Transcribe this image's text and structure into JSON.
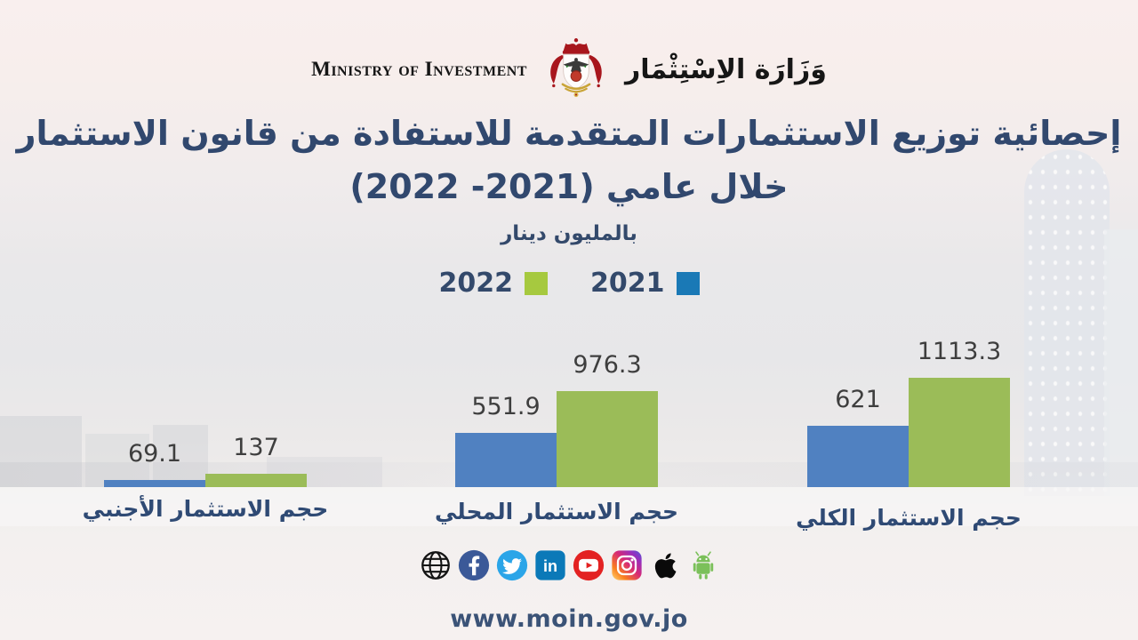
{
  "header": {
    "ministry_en": "Ministry of Investment",
    "ministry_ar": "وَزَارَة الاِسْتِثْمَار",
    "logo_icon": "jordan-coat-of-arms"
  },
  "title": {
    "line1": "إحصائية توزيع الاستثمارات المتقدمة للاستفادة من قانون الاستثمار",
    "line2": "خلال عامي (2021- 2022)"
  },
  "subtitle": "بالمليون دينار",
  "legend": {
    "items": [
      {
        "label": "2022",
        "color": "#a6c93f"
      },
      {
        "label": "2021",
        "color": "#1a79b6"
      }
    ]
  },
  "chart_data": {
    "type": "bar",
    "title": "إحصائية توزيع الاستثمارات المتقدمة للاستفادة من قانون الاستثمار خلال عامي (2021- 2022)",
    "unit": "بالمليون دينار",
    "categories": [
      "حجم الاستثمار الأجنبي",
      "حجم الاستثمار المحلي",
      "حجم الاستثمار الكلي"
    ],
    "series": [
      {
        "name": "2021",
        "color": "#5081c1",
        "values": [
          69.1,
          551.9,
          621
        ]
      },
      {
        "name": "2022",
        "color": "#9bbc58",
        "values": [
          137,
          976.3,
          1113.3
        ]
      }
    ],
    "value_labels": [
      [
        "69.1",
        "137"
      ],
      [
        "551.9",
        "976.3"
      ],
      [
        "621",
        "1113.3"
      ]
    ],
    "ylim": [
      0,
      1150
    ],
    "grid": false,
    "legend_position": "top-center",
    "orientation": "vertical"
  },
  "social": {
    "icons": [
      "globe-icon",
      "facebook-icon",
      "twitter-icon",
      "linkedin-icon",
      "youtube-icon",
      "instagram-icon",
      "apple-icon",
      "android-icon"
    ]
  },
  "footer": {
    "website": "www.moin.gov.jo"
  },
  "colors": {
    "title_text": "#31486e",
    "value_text": "#3e3e3e",
    "bar_2021": "#5081c1",
    "bar_2022": "#9bbc58",
    "legend_2021": "#1a79b6",
    "legend_2022": "#a6c93f",
    "background_top": "#f9efee",
    "background_mid": "#e8e8ea"
  }
}
